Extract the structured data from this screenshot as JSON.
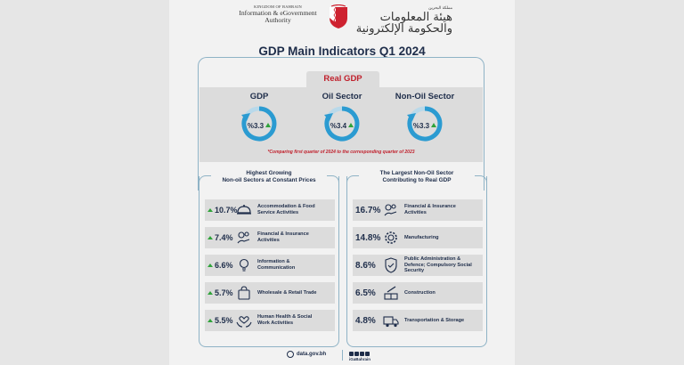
{
  "header": {
    "kingdom": "KINGDOM OF BAHRAIN",
    "org_line1": "Information & eGovernment",
    "org_line2": "Authority",
    "org_ar_small": "مملكة البحرين",
    "org_ar": "هيئة المعلومات والحكومة الإلكترونية"
  },
  "title": "GDP Main Indicators Q1 2024",
  "real_gdp": {
    "heading": "Real GDP",
    "gauges": [
      {
        "label": "GDP",
        "value": "%3.3"
      },
      {
        "label": "Oil Sector",
        "value": "%3.4"
      },
      {
        "label": "Non-Oil Sector",
        "value": "%3.3"
      }
    ],
    "footnote": "*Comparing first quarter of 2024 to the corresponding quarter of 2023"
  },
  "left_panel": {
    "title_line1": "Highest Growing",
    "title_line2": "Non-oil Sectors at Constant Prices",
    "rows": [
      {
        "pct": "10.7%",
        "line1": "Accommodation & Food",
        "line2": "Service Activities",
        "icon": "food-service-icon"
      },
      {
        "pct": "7.4%",
        "line1": "Financial & Insurance",
        "line2": "Activities",
        "icon": "finance-icon"
      },
      {
        "pct": "6.6%",
        "line1": "Information &",
        "line2": "Communication",
        "icon": "info-bulb-icon"
      },
      {
        "pct": "5.7%",
        "line1": "Wholesale & Retail Trade",
        "line2": "",
        "icon": "shopping-bag-icon"
      },
      {
        "pct": "5.5%",
        "line1": "Human Health & Social",
        "line2": "Work Activities",
        "icon": "health-hands-icon"
      }
    ]
  },
  "right_panel": {
    "title_line1": "The Largest Non-Oil Sector",
    "title_line2": "Contributing to Real GDP",
    "rows": [
      {
        "pct": "16.7%",
        "line1": "Financial & Insurance",
        "line2": "Activities",
        "line3": "",
        "icon": "finance-icon"
      },
      {
        "pct": "14.8%",
        "line1": "Manufacturing",
        "line2": "",
        "line3": "",
        "icon": "gear-icon"
      },
      {
        "pct": "8.6%",
        "line1": "Public Administration &",
        "line2": "Defence; Compulsory Social",
        "line3": "Security",
        "icon": "shield-icon"
      },
      {
        "pct": "6.5%",
        "line1": "Construction",
        "line2": "",
        "line3": "",
        "icon": "construction-icon"
      },
      {
        "pct": "4.8%",
        "line1": "Transportation & Storage",
        "line2": "",
        "line3": "",
        "icon": "truck-icon"
      }
    ]
  },
  "footer": {
    "website": "data.gov.bh",
    "handle": "iGaBahrain"
  },
  "colors": {
    "navy": "#1e2d4a",
    "red": "#c0202c",
    "green": "#2fa33a",
    "teal": "#8fb3c6",
    "gauge_blue": "#2b9bd1"
  }
}
